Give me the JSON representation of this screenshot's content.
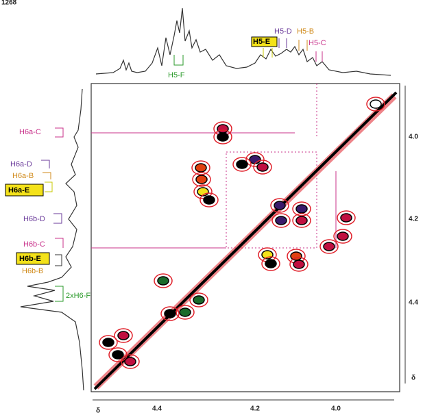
{
  "page_label": "1268",
  "top_labels": [
    "H5-F",
    "H5-E",
    "H5-D",
    "H5-B",
    "H5-C"
  ],
  "left_labels": [
    "H6a-C",
    "H6a-D",
    "H6a-B",
    "H6a-E",
    "H6b-D",
    "H6b-C",
    "H6b-E",
    "H6b-B",
    "2xH6-F"
  ],
  "x_axis": {
    "symbol": "δ",
    "ticks": [
      "4.4",
      "4.2",
      "4.0"
    ]
  },
  "y_axis": {
    "symbol": "δ",
    "ticks": [
      "4.0",
      "4.2",
      "4.4"
    ]
  }
}
